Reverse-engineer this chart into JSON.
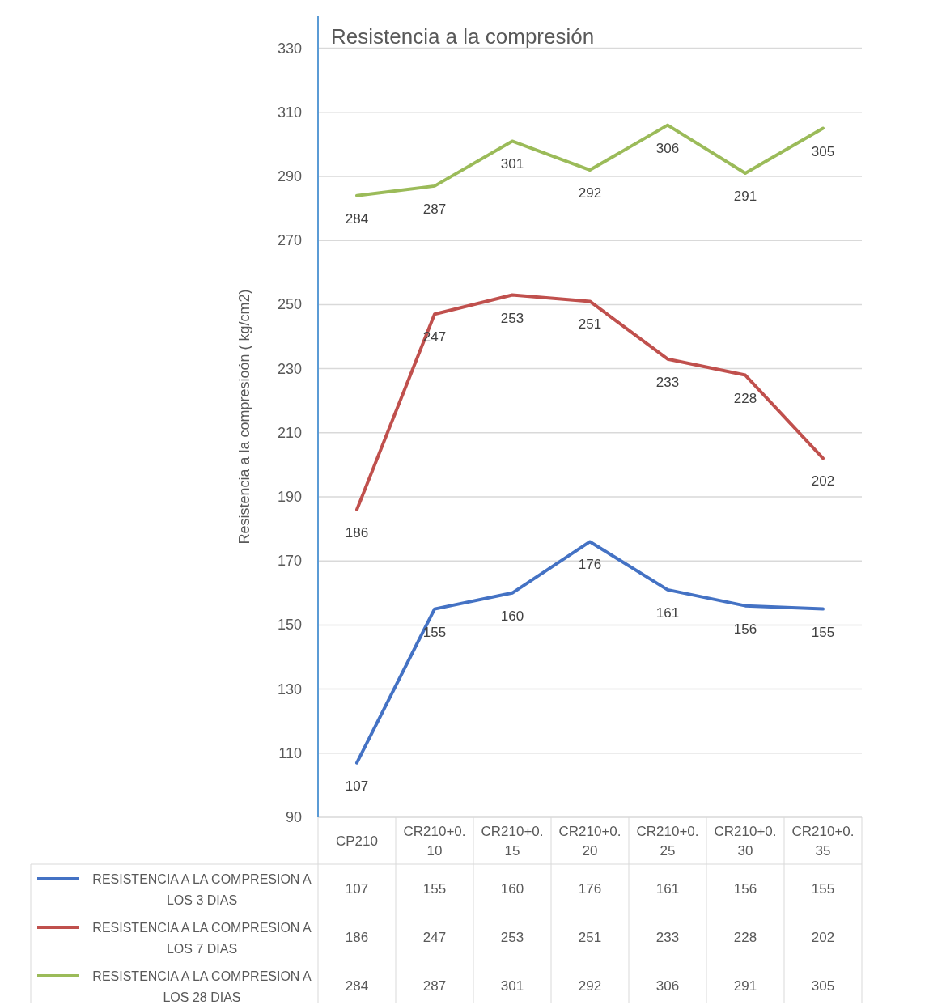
{
  "chart_data": {
    "type": "line",
    "title": "Resistencia a la compresión",
    "ylabel": "Resistencia a la compresioón ( kg/cm2)",
    "categories": [
      "CP210",
      "CR210+0.10",
      "CR210+0.15",
      "CR210+0.20",
      "CR210+0.25",
      "CR210+0.30",
      "CR210+0.35"
    ],
    "series": [
      {
        "name": "RESISTENCIA A LA COMPRESION A LOS 3 DIAS",
        "color": "#4472c4",
        "values": [
          107,
          155,
          160,
          176,
          161,
          156,
          155
        ],
        "value_labels": [
          "107",
          "155",
          "160",
          "176",
          "161",
          "156",
          "155"
        ]
      },
      {
        "name": "RESISTENCIA A LA COMPRESION A LOS 7 DIAS",
        "color": "#c0504d",
        "values": [
          186,
          247,
          253,
          251,
          233,
          228,
          202
        ],
        "value_labels": [
          "186",
          "247",
          "253",
          "251",
          "233",
          "228",
          "202"
        ]
      },
      {
        "name": "RESISTENCIA A LA COMPRESION A LOS 28 DIAS",
        "color": "#9bbb59",
        "values": [
          284,
          287,
          301,
          292,
          306,
          291,
          305
        ],
        "value_labels": [
          "284",
          "287",
          "301",
          "292",
          "306",
          "291",
          "305"
        ]
      }
    ],
    "ylim": [
      90,
      340
    ],
    "yticks": [
      90,
      110,
      130,
      150,
      170,
      190,
      210,
      230,
      250,
      270,
      290,
      310,
      330
    ],
    "grid": "y",
    "legend": "bottom",
    "data_labels": true,
    "marker": "none",
    "line_style": "solid"
  }
}
